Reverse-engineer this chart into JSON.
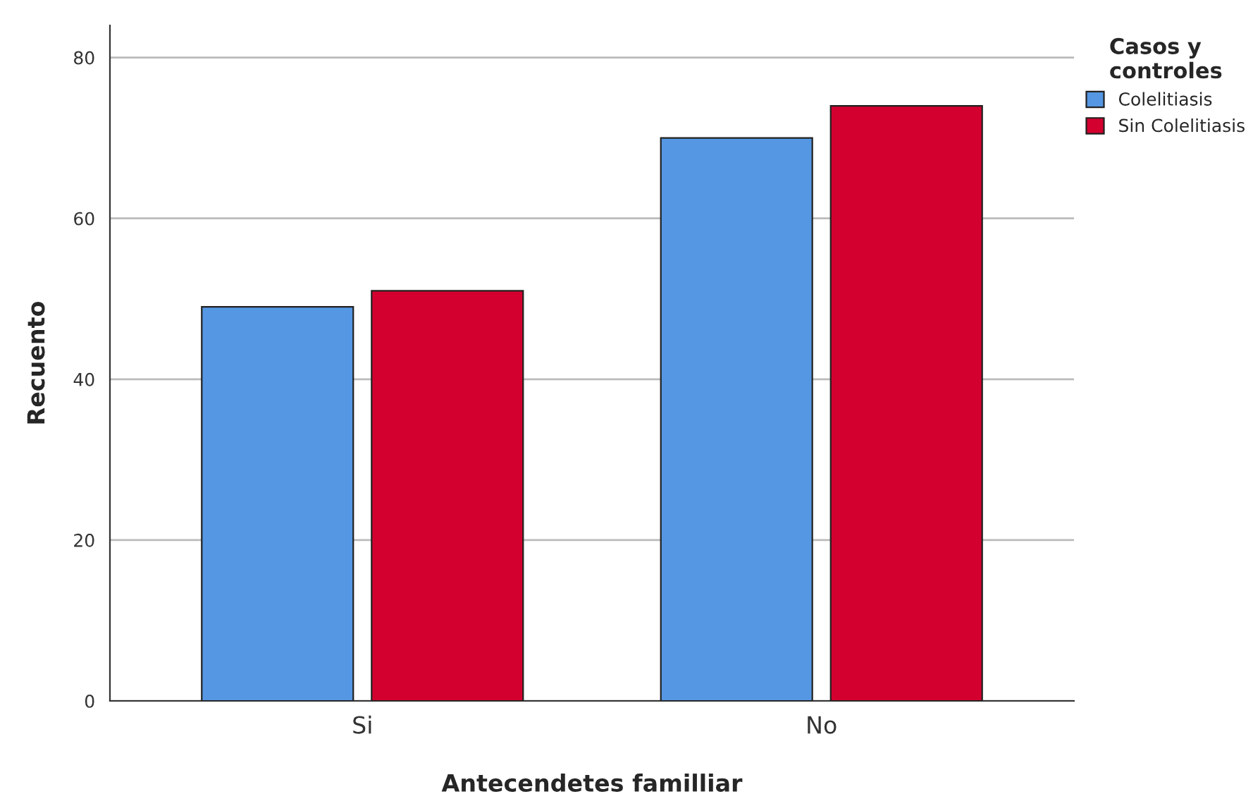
{
  "chart_data": {
    "type": "bar",
    "xlabel": "Antecendetes familliar",
    "ylabel": "Recuento",
    "legend_title": "Casos y\ncontroles",
    "categories": [
      "Si",
      "No"
    ],
    "series": [
      {
        "name": "Colelitiasis",
        "color": "#5597e2",
        "values": [
          49,
          70
        ]
      },
      {
        "name": "Sin Colelitiasis",
        "color": "#d3002f",
        "values": [
          51,
          74
        ]
      }
    ],
    "ylim": [
      0,
      84
    ],
    "yticks": [
      0,
      20,
      40,
      60,
      80
    ],
    "grid": "y",
    "legend": "top right"
  }
}
